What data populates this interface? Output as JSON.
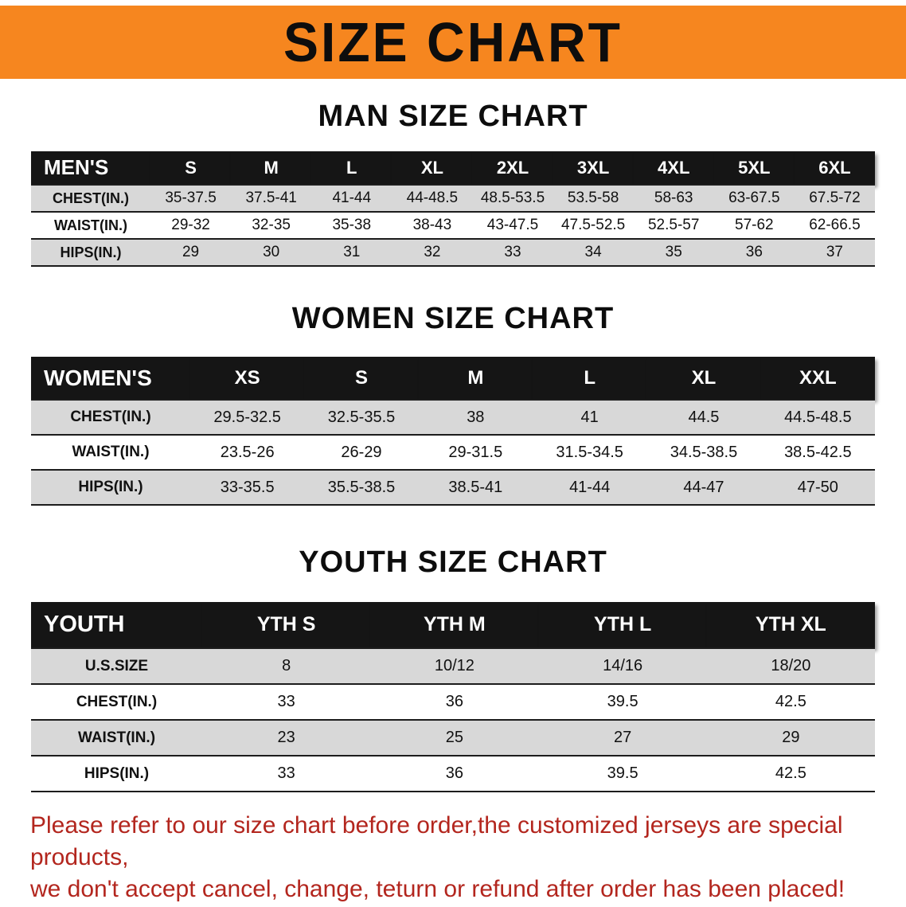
{
  "banner": {
    "title": "SIZE CHART",
    "bg_color": "#f6861f"
  },
  "sections": [
    {
      "id": "men",
      "heading": "MAN SIZE CHART",
      "table": {
        "header": [
          "MEN'S",
          "S",
          "M",
          "L",
          "XL",
          "2XL",
          "3XL",
          "4XL",
          "5XL",
          "6XL"
        ],
        "rows": [
          [
            "CHEST(IN.)",
            "35-37.5",
            "37.5-41",
            "41-44",
            "44-48.5",
            "48.5-53.5",
            "53.5-58",
            "58-63",
            "63-67.5",
            "67.5-72"
          ],
          [
            "WAIST(IN.)",
            "29-32",
            "32-35",
            "35-38",
            "38-43",
            "43-47.5",
            "47.5-52.5",
            "52.5-57",
            "57-62",
            "62-66.5"
          ],
          [
            "HIPS(IN.)",
            "29",
            "30",
            "31",
            "32",
            "33",
            "34",
            "35",
            "36",
            "37"
          ]
        ]
      }
    },
    {
      "id": "women",
      "heading": "WOMEN SIZE CHART",
      "table": {
        "header": [
          "WOMEN'S",
          "XS",
          "S",
          "M",
          "L",
          "XL",
          "XXL"
        ],
        "rows": [
          [
            "CHEST(IN.)",
            "29.5-32.5",
            "32.5-35.5",
            "38",
            "41",
            "44.5",
            "44.5-48.5"
          ],
          [
            "WAIST(IN.)",
            "23.5-26",
            "26-29",
            "29-31.5",
            "31.5-34.5",
            "34.5-38.5",
            "38.5-42.5"
          ],
          [
            "HIPS(IN.)",
            "33-35.5",
            "35.5-38.5",
            "38.5-41",
            "41-44",
            "44-47",
            "47-50"
          ]
        ]
      }
    },
    {
      "id": "youth",
      "heading": "YOUTH SIZE CHART",
      "table": {
        "header": [
          "YOUTH",
          "YTH S",
          "YTH M",
          "YTH L",
          "YTH XL"
        ],
        "rows": [
          [
            "U.S.SIZE",
            "8",
            "10/12",
            "14/16",
            "18/20"
          ],
          [
            "CHEST(IN.)",
            "33",
            "36",
            "39.5",
            "42.5"
          ],
          [
            "WAIST(IN.)",
            "23",
            "25",
            "27",
            "29"
          ],
          [
            "HIPS(IN.)",
            "33",
            "36",
            "39.5",
            "42.5"
          ]
        ]
      }
    }
  ],
  "footer": {
    "line1": "Please refer to our size chart before order,the customized jerseys are special products,",
    "line2": "we don't accept cancel, change, teturn or refund after order has been placed!",
    "color": "#b3261e"
  }
}
